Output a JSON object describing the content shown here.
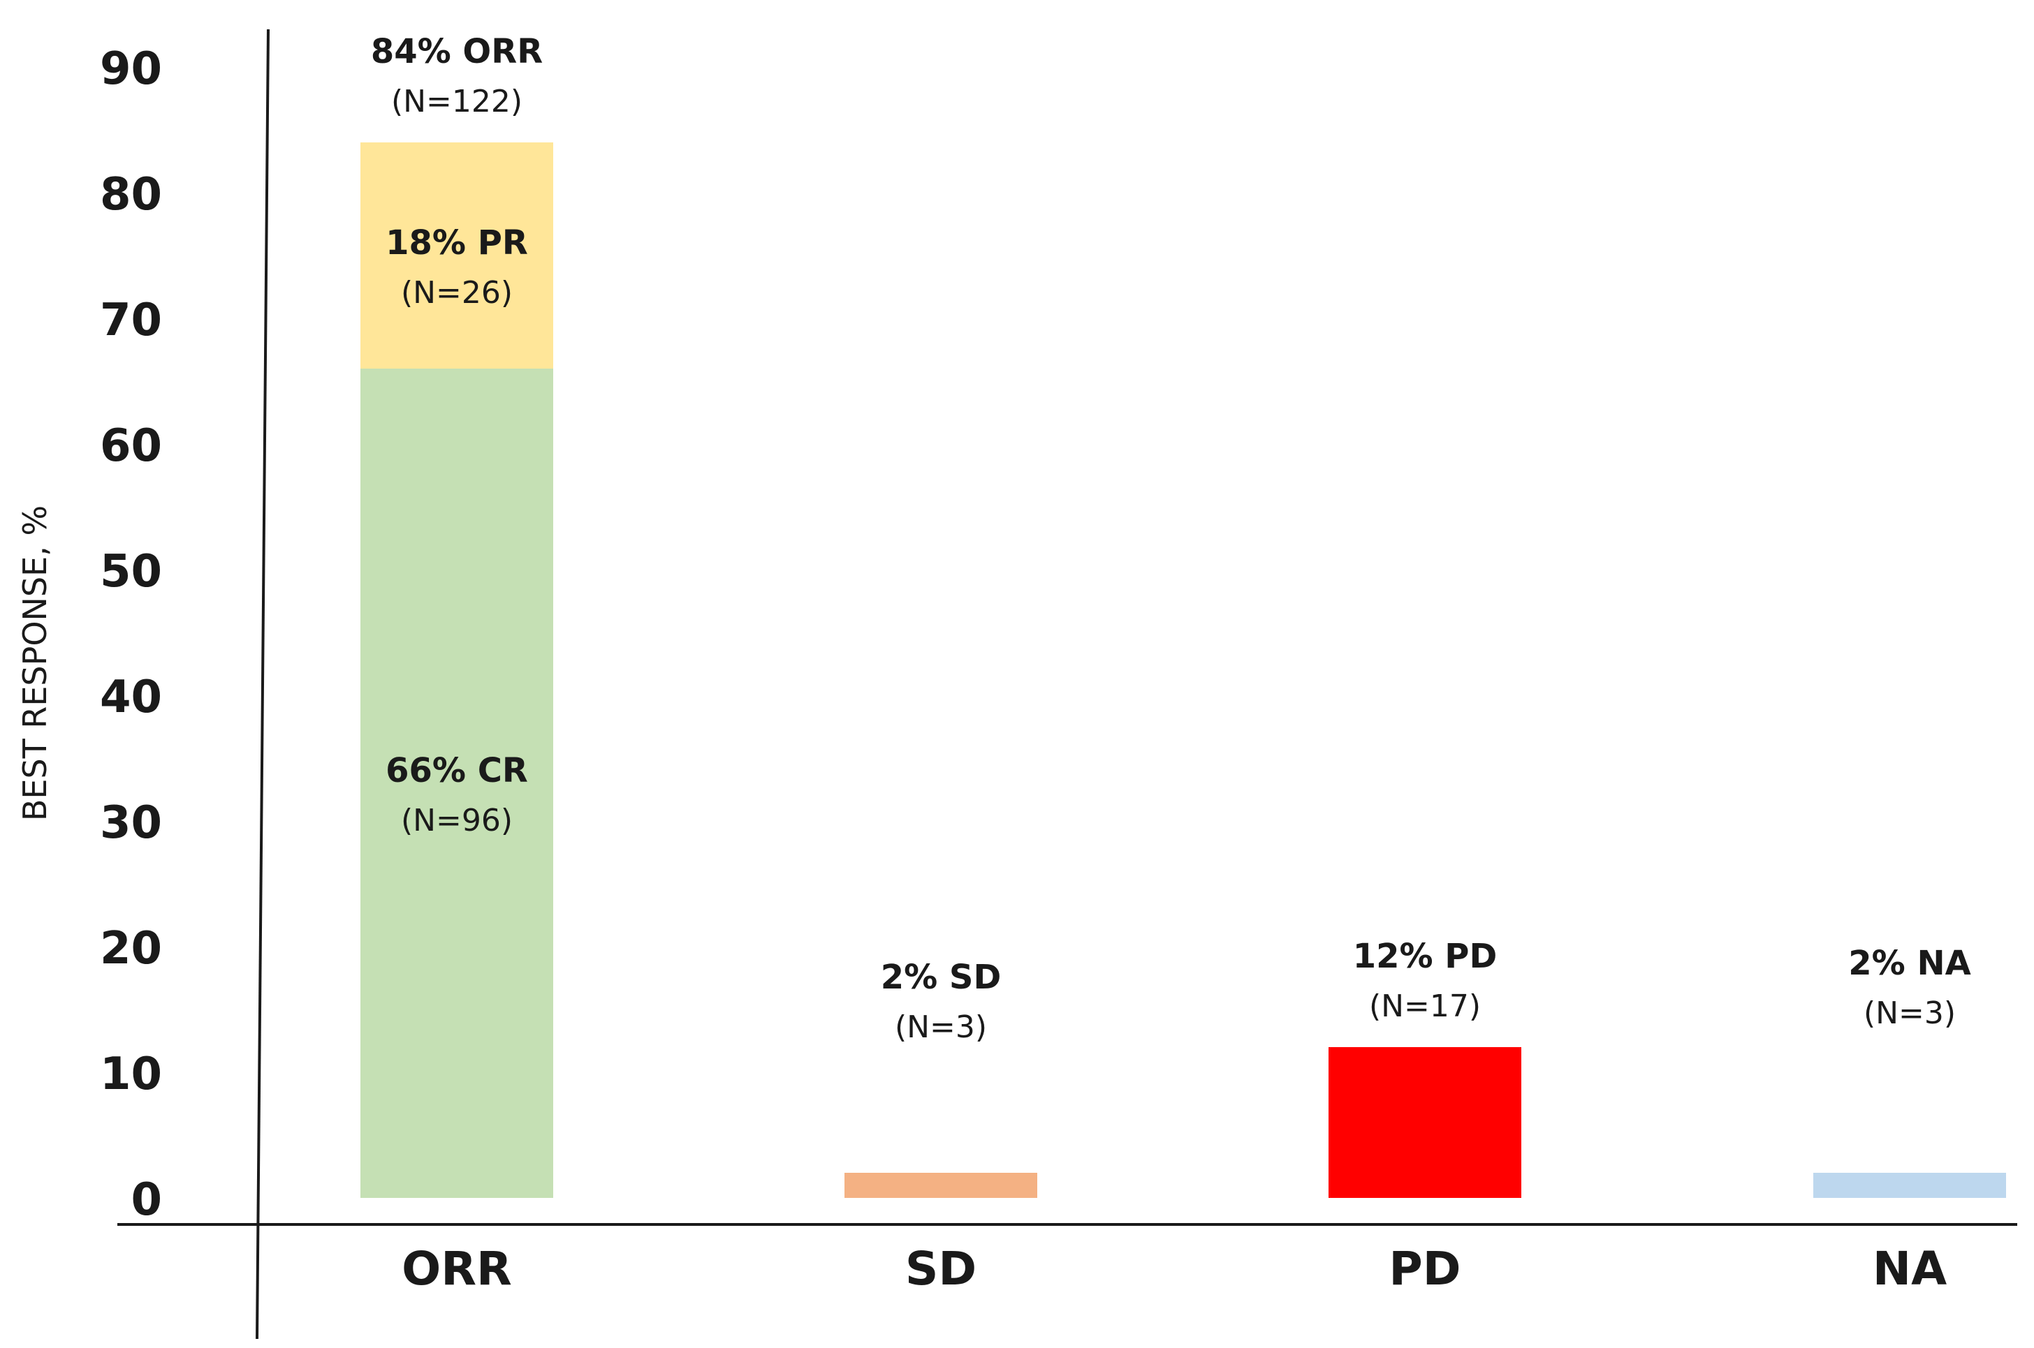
{
  "chart_data": {
    "type": "bar",
    "stacked": true,
    "ylabel": "BEST RESPONSE, %",
    "xlabel": "",
    "title": "",
    "ylim": [
      0,
      90
    ],
    "yticks": [
      0,
      10,
      20,
      30,
      40,
      50,
      60,
      70,
      80,
      90
    ],
    "grid": false,
    "legend": "none",
    "categories": [
      "ORR",
      "SD",
      "PD",
      "NA"
    ],
    "series": [
      {
        "values": [
          66,
          0,
          0,
          0
        ],
        "color": "#c5e0b4"
      },
      {
        "values": [
          18,
          0,
          0,
          0
        ],
        "color": "#ffe699"
      },
      {
        "values": [
          0,
          2,
          0,
          0
        ],
        "color": "#f4b183"
      },
      {
        "values": [
          0,
          0,
          12,
          0
        ],
        "color": "#ff0000"
      },
      {
        "values": [
          0,
          0,
          0,
          2
        ],
        "color": "#bdd7ee"
      }
    ],
    "segment_labels": [
      {
        "category": "ORR",
        "value": 66,
        "text": "66% CR",
        "sub": "(N=96)"
      },
      {
        "category": "ORR",
        "value": 18,
        "text": "18% PR",
        "sub": "(N=26)"
      }
    ],
    "top_labels": [
      {
        "category": "ORR",
        "value": 84,
        "text": "84% ORR",
        "sub": "(N=122)"
      },
      {
        "category": "SD",
        "value": 2,
        "text": "2% SD",
        "sub": "(N=3)"
      },
      {
        "category": "PD",
        "value": 12,
        "text": "12% PD",
        "sub": "(N=17)"
      },
      {
        "category": "NA",
        "value": 2,
        "text": "2% NA",
        "sub": "(N=3)"
      }
    ]
  }
}
